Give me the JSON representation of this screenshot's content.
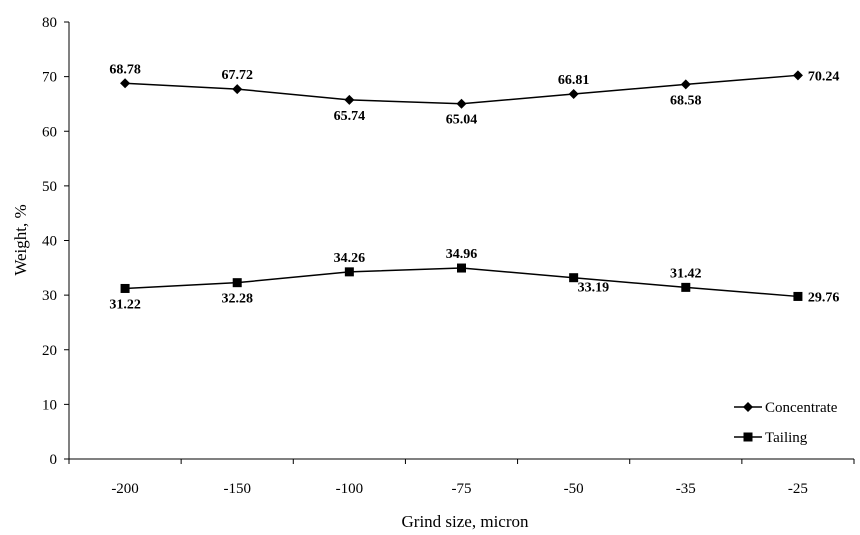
{
  "chart_data": {
    "type": "line",
    "title": "",
    "xlabel": "Grind size, micron",
    "ylabel": "Weight, %",
    "categories": [
      "-200",
      "-150",
      "-100",
      "-75",
      "-50",
      "-35",
      "-25"
    ],
    "ylim": [
      0,
      80
    ],
    "yticks": [
      "0",
      "10",
      "20",
      "30",
      "40",
      "50",
      "60",
      "70",
      "80"
    ],
    "grid": false,
    "legend_position": "bottom-right",
    "series": [
      {
        "name": "Concentrate",
        "marker": "diamond",
        "color": "#000000",
        "values": [
          68.78,
          67.72,
          65.74,
          65.04,
          66.81,
          68.58,
          70.24
        ],
        "labels": [
          "68.78",
          "67.72",
          "65.74",
          "65.04",
          "66.81",
          "68.58",
          "70.24"
        ]
      },
      {
        "name": "Tailing",
        "marker": "square",
        "color": "#000000",
        "values": [
          31.22,
          32.28,
          34.26,
          34.96,
          33.19,
          31.42,
          29.76
        ],
        "labels": [
          "31.22",
          "32.28",
          "34.26",
          "34.96",
          "33.19",
          "31.42",
          "29.76"
        ]
      }
    ]
  }
}
